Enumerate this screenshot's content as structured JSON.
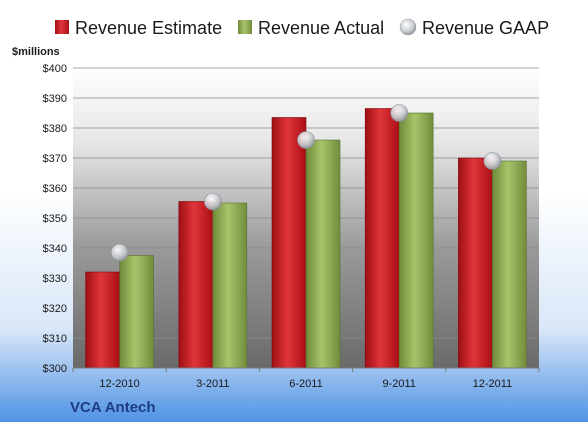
{
  "chart_data": {
    "type": "bar",
    "company": "VCA Antech",
    "unit_label": "$millions",
    "categories": [
      "12-2010",
      "3-2011",
      "6-2011",
      "9-2011",
      "12-2011"
    ],
    "series": [
      {
        "name": "Revenue Estimate",
        "kind": "bar",
        "values": [
          332,
          355.5,
          383.5,
          386.5,
          370
        ]
      },
      {
        "name": "Revenue Actual",
        "kind": "bar",
        "values": [
          337.5,
          355,
          376,
          385,
          369
        ]
      },
      {
        "name": "Revenue GAAP",
        "kind": "marker",
        "values": [
          338.5,
          355.5,
          376,
          385,
          369
        ]
      }
    ],
    "ylim": [
      300,
      400
    ],
    "y_ticks": [
      "$300",
      "$310",
      "$320",
      "$330",
      "$340",
      "$350",
      "$360",
      "$370",
      "$380",
      "$390",
      "$400"
    ],
    "grid": true,
    "legend_position": "top",
    "colors": {
      "estimate": "#c8161d",
      "actual": "#8fad52",
      "gaap_marker": "#c0c4cc",
      "background_top": "#ffffff",
      "background_bottom": "#5a9ae6",
      "plot_top": "#ffffff",
      "plot_bottom": "#6f6f6f",
      "company_text": "#1f3c88"
    }
  }
}
